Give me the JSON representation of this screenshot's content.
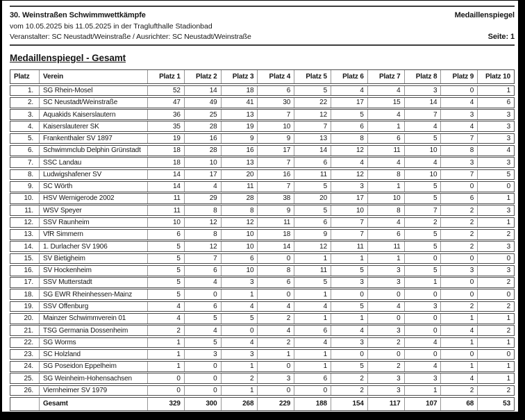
{
  "header": {
    "title": "30. Weinstraßen Schwimmwettkämpfe",
    "doc_type": "Medaillenspiegel",
    "date_line": "vom 10.05.2025 bis 11.05.2025 in der Traglufthalle Stadionbad",
    "organizer_line": "Veranstalter: SC Neustadt/Weinstraße / Ausrichter: SC Neustadt/Weinstraße",
    "page_label": "Seite: 1"
  },
  "section_title": "Medaillenspiegel - Gesamt",
  "colors": {
    "text": "#161616",
    "row_border": "#4d4d4d",
    "cell_divider": "#969696",
    "rule": "#3d3d3d",
    "page_background": "#ffffff",
    "frame_background": "#000000"
  },
  "table": {
    "columns": [
      "Platz",
      "Verein",
      "Platz 1",
      "Platz 2",
      "Platz 3",
      "Platz 4",
      "Platz 5",
      "Platz 6",
      "Platz 7",
      "Platz 8",
      "Platz 9",
      "Platz 10"
    ],
    "rows": [
      {
        "rank": "1.",
        "club": "SG Rhein-Mosel",
        "values": [
          52,
          14,
          18,
          6,
          5,
          4,
          4,
          3,
          0,
          1
        ]
      },
      {
        "rank": "2.",
        "club": "SC Neustadt/Weinstraße",
        "values": [
          47,
          49,
          41,
          30,
          22,
          17,
          15,
          14,
          4,
          6
        ]
      },
      {
        "rank": "3.",
        "club": "Aquakids Kaiserslautern",
        "values": [
          36,
          25,
          13,
          7,
          12,
          5,
          4,
          7,
          3,
          3
        ]
      },
      {
        "rank": "4.",
        "club": "Kaiserslauterer SK",
        "values": [
          35,
          28,
          19,
          10,
          7,
          6,
          1,
          4,
          4,
          3
        ]
      },
      {
        "rank": "5.",
        "club": "Frankenthaler SV 1897",
        "values": [
          19,
          16,
          9,
          9,
          13,
          8,
          6,
          5,
          7,
          3
        ]
      },
      {
        "rank": "6.",
        "club": "Schwimmclub Delphin Grünstadt",
        "values": [
          18,
          28,
          16,
          17,
          14,
          12,
          11,
          10,
          8,
          4
        ]
      },
      {
        "rank": "7.",
        "club": "SSC Landau",
        "values": [
          18,
          10,
          13,
          7,
          6,
          4,
          4,
          4,
          3,
          3
        ]
      },
      {
        "rank": "8.",
        "club": "Ludwigshafener SV",
        "values": [
          14,
          17,
          20,
          16,
          11,
          12,
          8,
          10,
          7,
          5
        ]
      },
      {
        "rank": "9.",
        "club": "SC Wörth",
        "values": [
          14,
          4,
          11,
          7,
          5,
          3,
          1,
          5,
          0,
          0
        ]
      },
      {
        "rank": "10.",
        "club": "HSV Wernigerode 2002",
        "values": [
          11,
          29,
          28,
          38,
          20,
          17,
          10,
          5,
          6,
          1
        ]
      },
      {
        "rank": "11.",
        "club": "WSV Speyer",
        "values": [
          11,
          8,
          8,
          9,
          5,
          10,
          8,
          7,
          2,
          3
        ]
      },
      {
        "rank": "12.",
        "club": "SSV Raunheim",
        "values": [
          10,
          12,
          12,
          11,
          6,
          7,
          4,
          2,
          2,
          1
        ]
      },
      {
        "rank": "13.",
        "club": "VfR Simmern",
        "values": [
          6,
          8,
          10,
          18,
          9,
          7,
          6,
          5,
          2,
          2
        ]
      },
      {
        "rank": "14.",
        "club": "1. Durlacher SV 1906",
        "values": [
          5,
          12,
          10,
          14,
          12,
          11,
          11,
          5,
          2,
          3
        ]
      },
      {
        "rank": "15.",
        "club": "SV Bietigheim",
        "values": [
          5,
          7,
          6,
          0,
          1,
          1,
          1,
          0,
          0,
          0
        ]
      },
      {
        "rank": "16.",
        "club": "SV Hockenheim",
        "values": [
          5,
          6,
          10,
          8,
          11,
          5,
          3,
          5,
          3,
          3
        ]
      },
      {
        "rank": "17.",
        "club": "SSV Mutterstadt",
        "values": [
          5,
          4,
          3,
          6,
          5,
          3,
          3,
          1,
          0,
          2
        ]
      },
      {
        "rank": "18.",
        "club": "SG EWR Rheinhessen-Mainz",
        "values": [
          5,
          0,
          1,
          0,
          1,
          0,
          0,
          0,
          0,
          0
        ]
      },
      {
        "rank": "19.",
        "club": "SSV Offenburg",
        "values": [
          4,
          6,
          4,
          4,
          4,
          5,
          4,
          3,
          2,
          2
        ]
      },
      {
        "rank": "20.",
        "club": "Mainzer Schwimmverein 01",
        "values": [
          4,
          5,
          5,
          2,
          1,
          1,
          0,
          0,
          1,
          1
        ]
      },
      {
        "rank": "21.",
        "club": "TSG Germania Dossenheim",
        "values": [
          2,
          4,
          0,
          4,
          6,
          4,
          3,
          0,
          4,
          2
        ]
      },
      {
        "rank": "22.",
        "club": "SG Worms",
        "values": [
          1,
          5,
          4,
          2,
          4,
          3,
          2,
          4,
          1,
          1
        ]
      },
      {
        "rank": "23.",
        "club": "SC Holzland",
        "values": [
          1,
          3,
          3,
          1,
          1,
          0,
          0,
          0,
          0,
          0
        ]
      },
      {
        "rank": "24.",
        "club": "SG Poseidon Eppelheim",
        "values": [
          1,
          0,
          1,
          0,
          1,
          5,
          2,
          4,
          1,
          1
        ]
      },
      {
        "rank": "25.",
        "club": "SG Weinheim-Hohensachsen",
        "values": [
          0,
          0,
          2,
          3,
          6,
          2,
          3,
          3,
          4,
          1
        ]
      },
      {
        "rank": "26.",
        "club": "Viernheimer SV 1979",
        "values": [
          0,
          0,
          1,
          0,
          0,
          2,
          3,
          1,
          2,
          2
        ]
      }
    ],
    "total": {
      "rank": "",
      "label": "Gesamt",
      "values": [
        329,
        300,
        268,
        229,
        188,
        154,
        117,
        107,
        68,
        53
      ]
    }
  }
}
